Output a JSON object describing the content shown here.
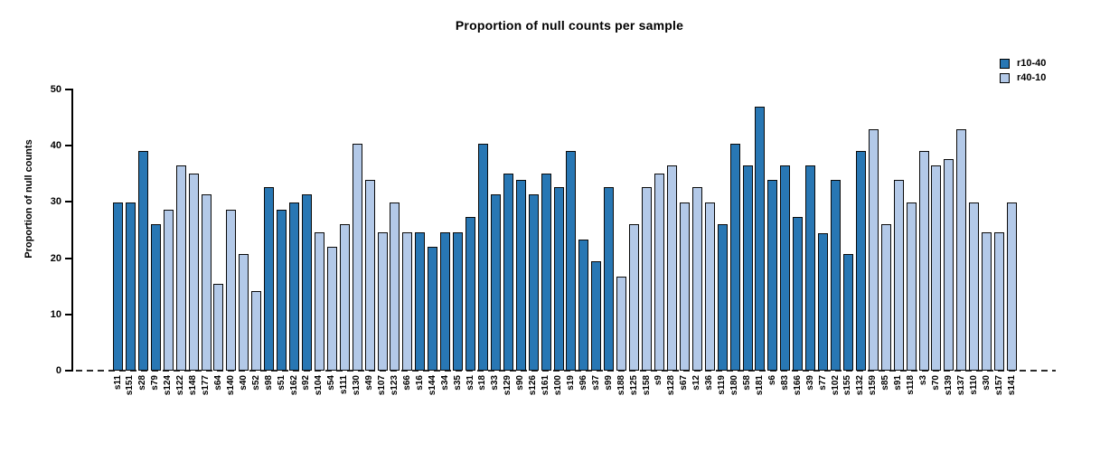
{
  "title": "Proportion of null counts per sample",
  "y_axis": {
    "label": "Proportion of null counts",
    "ticks": [
      0,
      10,
      20,
      30,
      40,
      50
    ]
  },
  "legend": [
    {
      "label": "r10-40",
      "color": "#2877b4"
    },
    {
      "label": "r40-10",
      "color": "#b3c9e8"
    }
  ],
  "colors": {
    "bar_border": "#0a0a0a",
    "baseline_dash": "#2b2b2b",
    "series_dark": "#2877b4",
    "series_light": "#b3c9e8"
  },
  "chart_data": {
    "type": "bar",
    "title": "Proportion of null counts per sample",
    "xlabel": "",
    "ylabel": "Proportion of null counts",
    "ylim": [
      0,
      50
    ],
    "grid": false,
    "legend_position": "top-right",
    "series_names": [
      "r10-40",
      "r40-10"
    ],
    "samples": [
      {
        "name": "s11",
        "series": "r10-40",
        "value": 29.9
      },
      {
        "name": "s151",
        "series": "r10-40",
        "value": 29.9
      },
      {
        "name": "s28",
        "series": "r10-40",
        "value": 39.1
      },
      {
        "name": "s79",
        "series": "r10-40",
        "value": 26.0
      },
      {
        "name": "s124",
        "series": "r40-10",
        "value": 28.6
      },
      {
        "name": "s122",
        "series": "r40-10",
        "value": 36.5
      },
      {
        "name": "s148",
        "series": "r40-10",
        "value": 35.1
      },
      {
        "name": "s177",
        "series": "r40-10",
        "value": 31.3
      },
      {
        "name": "s64",
        "series": "r40-10",
        "value": 15.5
      },
      {
        "name": "s140",
        "series": "r40-10",
        "value": 28.6
      },
      {
        "name": "s40",
        "series": "r40-10",
        "value": 20.7
      },
      {
        "name": "s52",
        "series": "r40-10",
        "value": 14.2
      },
      {
        "name": "s98",
        "series": "r10-40",
        "value": 32.6
      },
      {
        "name": "s51",
        "series": "r10-40",
        "value": 28.6
      },
      {
        "name": "s162",
        "series": "r10-40",
        "value": 29.9
      },
      {
        "name": "s92",
        "series": "r10-40",
        "value": 31.3
      },
      {
        "name": "s104",
        "series": "r40-10",
        "value": 24.6
      },
      {
        "name": "s54",
        "series": "r40-10",
        "value": 22.1
      },
      {
        "name": "s111",
        "series": "r40-10",
        "value": 26.0
      },
      {
        "name": "s130",
        "series": "r40-10",
        "value": 40.3
      },
      {
        "name": "s49",
        "series": "r40-10",
        "value": 33.9
      },
      {
        "name": "s107",
        "series": "r40-10",
        "value": 24.6
      },
      {
        "name": "s123",
        "series": "r40-10",
        "value": 29.9
      },
      {
        "name": "s66",
        "series": "r40-10",
        "value": 24.6
      },
      {
        "name": "s16",
        "series": "r10-40",
        "value": 24.6
      },
      {
        "name": "s144",
        "series": "r10-40",
        "value": 22.1
      },
      {
        "name": "s34",
        "series": "r10-40",
        "value": 24.6
      },
      {
        "name": "s35",
        "series": "r10-40",
        "value": 24.6
      },
      {
        "name": "s31",
        "series": "r10-40",
        "value": 27.3
      },
      {
        "name": "s18",
        "series": "r10-40",
        "value": 40.3
      },
      {
        "name": "s33",
        "series": "r10-40",
        "value": 31.3
      },
      {
        "name": "s129",
        "series": "r10-40",
        "value": 35.1
      },
      {
        "name": "s90",
        "series": "r10-40",
        "value": 33.9
      },
      {
        "name": "s126",
        "series": "r10-40",
        "value": 31.3
      },
      {
        "name": "s161",
        "series": "r10-40",
        "value": 35.1
      },
      {
        "name": "s100",
        "series": "r10-40",
        "value": 32.6
      },
      {
        "name": "s19",
        "series": "r10-40",
        "value": 39.1
      },
      {
        "name": "s96",
        "series": "r10-40",
        "value": 23.3
      },
      {
        "name": "s37",
        "series": "r10-40",
        "value": 19.4
      },
      {
        "name": "s99",
        "series": "r10-40",
        "value": 32.6
      },
      {
        "name": "s188",
        "series": "r40-10",
        "value": 16.8
      },
      {
        "name": "s125",
        "series": "r40-10",
        "value": 26.0
      },
      {
        "name": "s158",
        "series": "r40-10",
        "value": 32.6
      },
      {
        "name": "s9",
        "series": "r40-10",
        "value": 35.1
      },
      {
        "name": "s128",
        "series": "r40-10",
        "value": 36.5
      },
      {
        "name": "s67",
        "series": "r40-10",
        "value": 29.9
      },
      {
        "name": "s12",
        "series": "r40-10",
        "value": 32.6
      },
      {
        "name": "s36",
        "series": "r40-10",
        "value": 29.9
      },
      {
        "name": "s119",
        "series": "r10-40",
        "value": 26.0
      },
      {
        "name": "s180",
        "series": "r10-40",
        "value": 40.3
      },
      {
        "name": "s58",
        "series": "r10-40",
        "value": 36.5
      },
      {
        "name": "s181",
        "series": "r10-40",
        "value": 47.0
      },
      {
        "name": "s6",
        "series": "r10-40",
        "value": 33.9
      },
      {
        "name": "s83",
        "series": "r10-40",
        "value": 36.5
      },
      {
        "name": "s166",
        "series": "r10-40",
        "value": 27.3
      },
      {
        "name": "s39",
        "series": "r10-40",
        "value": 36.5
      },
      {
        "name": "s77",
        "series": "r10-40",
        "value": 24.5
      },
      {
        "name": "s102",
        "series": "r10-40",
        "value": 33.9
      },
      {
        "name": "s155",
        "series": "r10-40",
        "value": 20.8
      },
      {
        "name": "s132",
        "series": "r10-40",
        "value": 39.1
      },
      {
        "name": "s159",
        "series": "r40-10",
        "value": 42.9
      },
      {
        "name": "s85",
        "series": "r40-10",
        "value": 26.0
      },
      {
        "name": "s91",
        "series": "r40-10",
        "value": 33.9
      },
      {
        "name": "s118",
        "series": "r40-10",
        "value": 29.9
      },
      {
        "name": "s3",
        "series": "r40-10",
        "value": 39.1
      },
      {
        "name": "s70",
        "series": "r40-10",
        "value": 36.5
      },
      {
        "name": "s139",
        "series": "r40-10",
        "value": 37.7
      },
      {
        "name": "s137",
        "series": "r40-10",
        "value": 42.9
      },
      {
        "name": "s110",
        "series": "r40-10",
        "value": 29.9
      },
      {
        "name": "s30",
        "series": "r40-10",
        "value": 24.6
      },
      {
        "name": "s157",
        "series": "r40-10",
        "value": 24.6
      },
      {
        "name": "s141",
        "series": "r40-10",
        "value": 29.9
      }
    ]
  }
}
